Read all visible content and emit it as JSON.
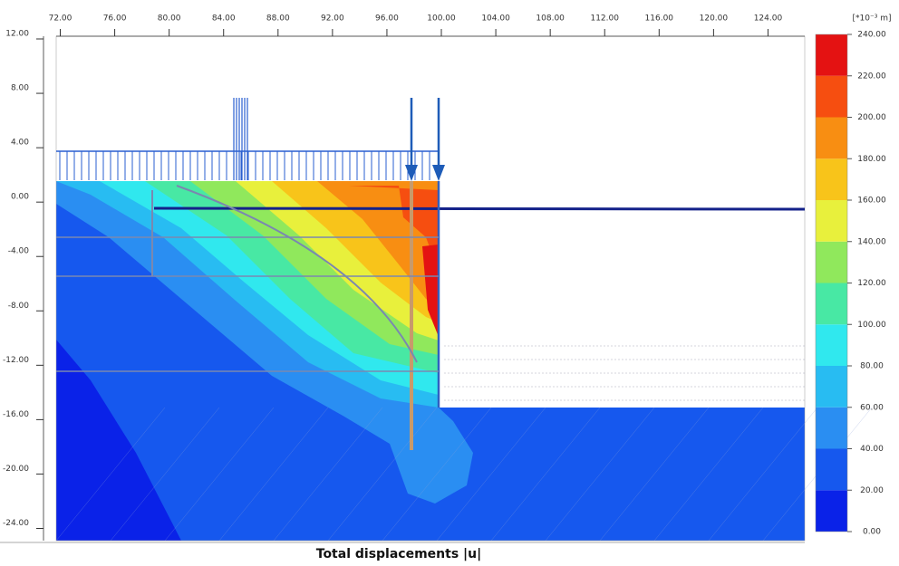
{
  "chart_data": {
    "type": "contour",
    "title": "Total displacements |u|",
    "xlim": [
      71.7,
      126.7
    ],
    "ylim": [
      -24.9,
      12.2
    ],
    "xticks": [
      {
        "value": 72,
        "label": "72.00"
      },
      {
        "value": 76,
        "label": "76.00"
      },
      {
        "value": 80,
        "label": "80.00"
      },
      {
        "value": 84,
        "label": "84.00"
      },
      {
        "value": 88,
        "label": "88.00"
      },
      {
        "value": 92,
        "label": "92.00"
      },
      {
        "value": 96,
        "label": "96.00"
      },
      {
        "value": 100,
        "label": "100.00"
      },
      {
        "value": 104,
        "label": "104.00"
      },
      {
        "value": 108,
        "label": "108.00"
      },
      {
        "value": 112,
        "label": "112.00"
      },
      {
        "value": 116,
        "label": "116.00"
      },
      {
        "value": 120,
        "label": "120.00"
      },
      {
        "value": 124,
        "label": "124.00"
      }
    ],
    "yticks": [
      {
        "value": 12,
        "label": "12.00"
      },
      {
        "value": 8,
        "label": "8.00"
      },
      {
        "value": 4,
        "label": "4.00"
      },
      {
        "value": 0,
        "label": "0.00"
      },
      {
        "value": -4,
        "label": "-4.00"
      },
      {
        "value": -8,
        "label": "-8.00"
      },
      {
        "value": -12,
        "label": "-12.00"
      },
      {
        "value": -16,
        "label": "-16.00"
      },
      {
        "value": -20,
        "label": "-20.00"
      },
      {
        "value": -24,
        "label": "-24.00"
      }
    ],
    "colorbar": {
      "label": "[*10⁻³ m]",
      "colors": [
        "#0a22e8",
        "#1658ee",
        "#2a8ef2",
        "#28bcf2",
        "#30e8ee",
        "#48e8a4",
        "#90e85c",
        "#e8f03c",
        "#f8c41a",
        "#f88e12",
        "#f64e10",
        "#e41212"
      ],
      "ticks": [
        {
          "value": 0,
          "label": "0.00"
        },
        {
          "value": 20,
          "label": "20.00"
        },
        {
          "value": 40,
          "label": "40.00"
        },
        {
          "value": 60,
          "label": "60.00"
        },
        {
          "value": 80,
          "label": "80.00"
        },
        {
          "value": 100,
          "label": "100.00"
        },
        {
          "value": 120,
          "label": "120.00"
        },
        {
          "value": 140,
          "label": "140.00"
        },
        {
          "value": 160,
          "label": "160.00"
        },
        {
          "value": 180,
          "label": "180.00"
        },
        {
          "value": 200,
          "label": "200.00"
        },
        {
          "value": 220,
          "label": "220.00"
        },
        {
          "value": 240,
          "label": "240.00"
        }
      ]
    }
  }
}
